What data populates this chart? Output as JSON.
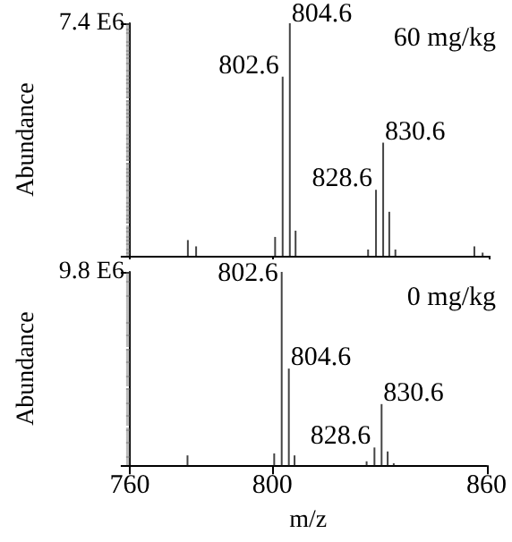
{
  "chart_data": [
    {
      "type": "bar",
      "ylabel": "Abundance",
      "color": "#444444",
      "x": [
        776.2,
        778.5,
        800.5,
        802.6,
        804.6,
        806.2,
        826.4,
        828.6,
        830.6,
        832.3,
        834.0,
        856.0,
        858.3
      ],
      "values": [
        500000,
        300000,
        600000,
        5700000,
        7400000,
        800000,
        200000,
        2100000,
        3600000,
        1400000,
        200000,
        300000,
        100000
      ],
      "xlim": [
        760,
        860
      ],
      "xticks": [
        760,
        800,
        860
      ],
      "ylim": [
        0,
        7400000
      ],
      "yticks": [
        {
          "value": 0,
          "label": null
        },
        {
          "value": 7400000,
          "label": "7.4 E6"
        }
      ],
      "tick_labels": "y",
      "grid": false,
      "annotations": [
        {
          "text": "802.6",
          "x": 802.6,
          "y": 5700000
        },
        {
          "text": "804.6",
          "x": 804.6,
          "y": 7400000
        },
        {
          "text": "828.6",
          "x": 828.6,
          "y": 2100000
        },
        {
          "text": "830.6",
          "x": 830.6,
          "y": 3600000
        },
        "60 mg/kg"
      ]
    },
    {
      "type": "bar",
      "ylabel": "Abundance",
      "xlabel": "m/z",
      "color": "#444444",
      "x": [
        776.2,
        800.5,
        802.6,
        804.6,
        806.2,
        826.4,
        828.6,
        830.6,
        832.3,
        834.0
      ],
      "values": [
        500000,
        600000,
        9800000,
        4900000,
        500000,
        200000,
        900000,
        3100000,
        700000,
        100000
      ],
      "xlim": [
        760,
        860
      ],
      "xticks": [
        760,
        800,
        860
      ],
      "ylim": [
        0,
        9800000
      ],
      "yticks": [
        {
          "value": 0,
          "label": null
        },
        {
          "value": 9800000,
          "label": "9.8 E6"
        }
      ],
      "grid": false,
      "annotations": [
        {
          "text": "802.6",
          "x": 802.6,
          "y": 9800000
        },
        {
          "text": "804.6",
          "x": 804.6,
          "y": 4900000
        },
        {
          "text": "828.6",
          "x": 828.6,
          "y": 900000
        },
        {
          "text": "830.6",
          "x": 830.6,
          "y": 3100000
        },
        "0 mg/kg"
      ]
    }
  ]
}
